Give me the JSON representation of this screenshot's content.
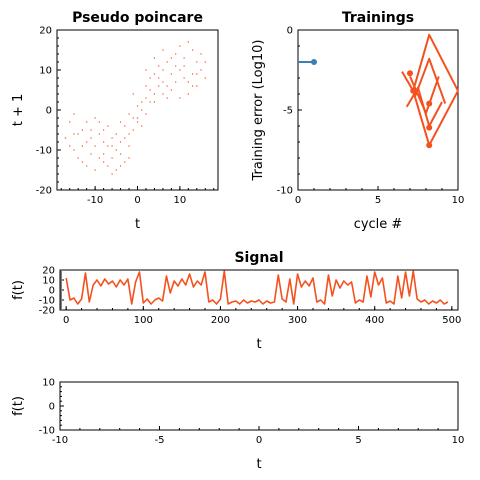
{
  "colors": {
    "orange": "#f4511e",
    "blue": "#3e7fb1",
    "axis": "#000000"
  },
  "chart_data": [
    {
      "type": "scatter",
      "title": "Pseudo poincare",
      "xlabel": "t",
      "ylabel": "t + 1",
      "xlim": [
        -19,
        19
      ],
      "ylim": [
        -20,
        20
      ],
      "xticks": [
        -10,
        0,
        10
      ],
      "yticks": [
        -20,
        -10,
        0,
        10,
        20
      ],
      "xtick_labels": [
        "-10",
        "0",
        "10"
      ],
      "ytick_labels": [
        "-20",
        "-10",
        "0",
        "10",
        "20"
      ],
      "series": [
        {
          "color": "#f4511e",
          "points": [
            [
              -16,
              -3
            ],
            [
              -15,
              -1
            ],
            [
              -13,
              -5
            ],
            [
              -12,
              -8
            ],
            [
              -11,
              -7
            ],
            [
              -10,
              -9
            ],
            [
              -9,
              -6
            ],
            [
              -8,
              -11
            ],
            [
              -7,
              -4
            ],
            [
              -6,
              -12
            ],
            [
              -5,
              -10
            ],
            [
              -4,
              -8
            ],
            [
              -3,
              -13
            ],
            [
              -2,
              -9
            ],
            [
              -1,
              -5
            ],
            [
              0,
              -2
            ],
            [
              1,
              0
            ],
            [
              2,
              3
            ],
            [
              3,
              5
            ],
            [
              4,
              2
            ],
            [
              5,
              8
            ],
            [
              6,
              10
            ],
            [
              7,
              12
            ],
            [
              8,
              9
            ],
            [
              9,
              14
            ],
            [
              10,
              16
            ],
            [
              11,
              11
            ],
            [
              12,
              7
            ],
            [
              13,
              9
            ],
            [
              14,
              12
            ],
            [
              15,
              10
            ],
            [
              16,
              8
            ],
            [
              -14,
              -12
            ],
            [
              -12,
              -14
            ],
            [
              -10,
              -15
            ],
            [
              -8,
              -13
            ],
            [
              -6,
              -9
            ],
            [
              -4,
              -3
            ],
            [
              -2,
              -1
            ],
            [
              0,
              1
            ],
            [
              2,
              6
            ],
            [
              4,
              9
            ],
            [
              6,
              4
            ],
            [
              8,
              5
            ],
            [
              10,
              3
            ],
            [
              12,
              4
            ],
            [
              14,
              6
            ],
            [
              -15,
              -10
            ],
            [
              -13,
              -9
            ],
            [
              -11,
              -11
            ],
            [
              -9,
              -12
            ],
            [
              -7,
              -14
            ],
            [
              -5,
              -6
            ],
            [
              -3,
              -4
            ],
            [
              -1,
              -2
            ],
            [
              1,
              2
            ],
            [
              3,
              8
            ],
            [
              5,
              11
            ],
            [
              7,
              6
            ],
            [
              9,
              7
            ],
            [
              11,
              13
            ],
            [
              13,
              15
            ],
            [
              15,
              14
            ],
            [
              -17,
              -7
            ],
            [
              -16,
              -9
            ],
            [
              -14,
              -6
            ],
            [
              -12,
              -3
            ],
            [
              -10,
              -2
            ],
            [
              -8,
              -5
            ],
            [
              -6,
              -7
            ],
            [
              -4,
              -11
            ],
            [
              -2,
              -6
            ],
            [
              0,
              -3
            ],
            [
              2,
              -1
            ],
            [
              4,
              4
            ],
            [
              6,
              7
            ],
            [
              8,
              13
            ],
            [
              10,
              10
            ],
            [
              12,
              17
            ],
            [
              3,
              2
            ],
            [
              -3,
              -7
            ],
            [
              -5,
              -15
            ],
            [
              -7,
              -9
            ],
            [
              5,
              6
            ],
            [
              7,
              3
            ],
            [
              9,
              11
            ],
            [
              11,
              8
            ],
            [
              13,
              6
            ],
            [
              -1,
              4
            ],
            [
              1,
              -4
            ],
            [
              -9,
              -3
            ],
            [
              -11,
              -5
            ],
            [
              -13,
              -13
            ],
            [
              -15,
              -6
            ],
            [
              14,
              9
            ],
            [
              16,
              12
            ],
            [
              6,
              15
            ],
            [
              4,
              13
            ],
            [
              2,
              10
            ],
            [
              -2,
              -12
            ],
            [
              -4,
              -14
            ],
            [
              -6,
              -16
            ],
            [
              -8,
              -8
            ]
          ]
        }
      ]
    },
    {
      "type": "line",
      "title": "Trainings",
      "xlabel": "cycle #",
      "ylabel": "Training error (Log10)",
      "xlim": [
        0,
        10
      ],
      "ylim": [
        -10,
        0
      ],
      "xticks": [
        0,
        5,
        10
      ],
      "yticks": [
        -10,
        -5,
        0
      ],
      "xtick_labels": [
        "0",
        "5",
        "10"
      ],
      "ytick_labels": [
        "-10",
        "-5",
        "0"
      ],
      "series": [
        {
          "color": "#3e7fb1",
          "x": [
            0,
            1
          ],
          "y": [
            -2,
            -2
          ]
        },
        {
          "color": "#f4511e",
          "x": [
            6.5,
            7.2,
            8.2,
            10
          ],
          "y": [
            -2.6,
            -3.8,
            -0.3,
            -3.8
          ]
        },
        {
          "color": "#f4511e",
          "x": [
            7.2,
            8.2,
            10
          ],
          "y": [
            -3.8,
            -7.2,
            -3.8
          ]
        },
        {
          "color": "#f4511e",
          "x": [
            6.8,
            7.5,
            8.2,
            9
          ],
          "y": [
            -4.8,
            -3.6,
            -6.0,
            -4.5
          ]
        },
        {
          "color": "#f4511e",
          "x": [
            7.0,
            8.0,
            8.8
          ],
          "y": [
            -2.9,
            -5.2,
            -2.9
          ]
        },
        {
          "color": "#f4511e",
          "x": [
            7.3,
            8.2,
            9.2
          ],
          "y": [
            -4.2,
            -1.8,
            -4.6
          ]
        }
      ],
      "markers": [
        {
          "color": "#3e7fb1",
          "x": 1,
          "y": -2
        },
        {
          "color": "#f4511e",
          "x": 7.2,
          "y": -3.8
        },
        {
          "color": "#f4511e",
          "x": 8.2,
          "y": -7.2
        },
        {
          "color": "#f4511e",
          "x": 8.2,
          "y": -4.6
        },
        {
          "color": "#f4511e",
          "x": 8.2,
          "y": -6.1
        },
        {
          "color": "#f4511e",
          "x": 7.0,
          "y": -2.7
        }
      ]
    },
    {
      "type": "line",
      "title": "Signal",
      "xlabel": "t",
      "ylabel": "f(t)",
      "xlim": [
        -8,
        508
      ],
      "ylim": [
        -20,
        20
      ],
      "xticks": [
        0,
        100,
        200,
        300,
        400,
        500
      ],
      "yticks": [
        -20,
        -10,
        0,
        10,
        20
      ],
      "xtick_labels": [
        "0",
        "100",
        "200",
        "300",
        "400",
        "500"
      ],
      "ytick_labels": [
        "-20",
        "-10",
        "0",
        "10",
        "20"
      ],
      "series": [
        {
          "color": "#f4511e",
          "x": [
            0,
            5,
            10,
            15,
            20,
            25,
            30,
            35,
            40,
            45,
            50,
            55,
            60,
            65,
            70,
            75,
            80,
            85,
            90,
            95,
            100,
            105,
            110,
            115,
            120,
            125,
            130,
            135,
            140,
            145,
            150,
            155,
            160,
            165,
            170,
            175,
            180,
            185,
            190,
            195,
            200,
            205,
            210,
            215,
            220,
            225,
            230,
            235,
            240,
            245,
            250,
            255,
            260,
            265,
            270,
            275,
            280,
            285,
            290,
            295,
            300,
            305,
            310,
            315,
            320,
            325,
            330,
            335,
            340,
            345,
            350,
            355,
            360,
            365,
            370,
            375,
            380,
            385,
            390,
            395,
            400,
            405,
            410,
            415,
            420,
            425,
            430,
            435,
            440,
            445,
            450,
            455,
            460,
            465,
            470,
            475,
            480,
            485,
            490,
            495
          ],
          "y": [
            12,
            -10,
            -8,
            -14,
            -9,
            17,
            -12,
            5,
            10,
            4,
            11,
            6,
            9,
            3,
            10,
            5,
            11,
            -14,
            8,
            18,
            -13,
            -9,
            -14,
            -10,
            -8,
            -11,
            14,
            -3,
            9,
            4,
            11,
            5,
            16,
            3,
            9,
            5,
            18,
            -12,
            -10,
            -14,
            -9,
            19,
            -14,
            -12,
            -11,
            -14,
            -10,
            -13,
            -11,
            -12,
            -10,
            -14,
            -11,
            -13,
            -12,
            15,
            -9,
            -12,
            11,
            -14,
            16,
            3,
            9,
            4,
            12,
            -12,
            -10,
            -14,
            15,
            -6,
            10,
            2,
            9,
            5,
            8,
            -13,
            -10,
            -12,
            14,
            -7,
            18,
            5,
            12,
            -13,
            -11,
            -14,
            14,
            -8,
            18,
            -6,
            19,
            -9,
            -12,
            -10,
            -14,
            -11,
            -13,
            -10,
            -14,
            -12
          ]
        }
      ]
    },
    {
      "type": "line",
      "title": "",
      "xlabel": "t",
      "ylabel": "f(t)",
      "xlim": [
        -10,
        10
      ],
      "ylim": [
        -10,
        10
      ],
      "xticks": [
        -10,
        -5,
        0,
        5,
        10
      ],
      "yticks": [
        -10,
        0,
        10
      ],
      "xtick_labels": [
        "-10",
        "-5",
        "0",
        "5",
        "10"
      ],
      "ytick_labels": [
        "-10",
        "0",
        "10"
      ],
      "series": []
    }
  ]
}
